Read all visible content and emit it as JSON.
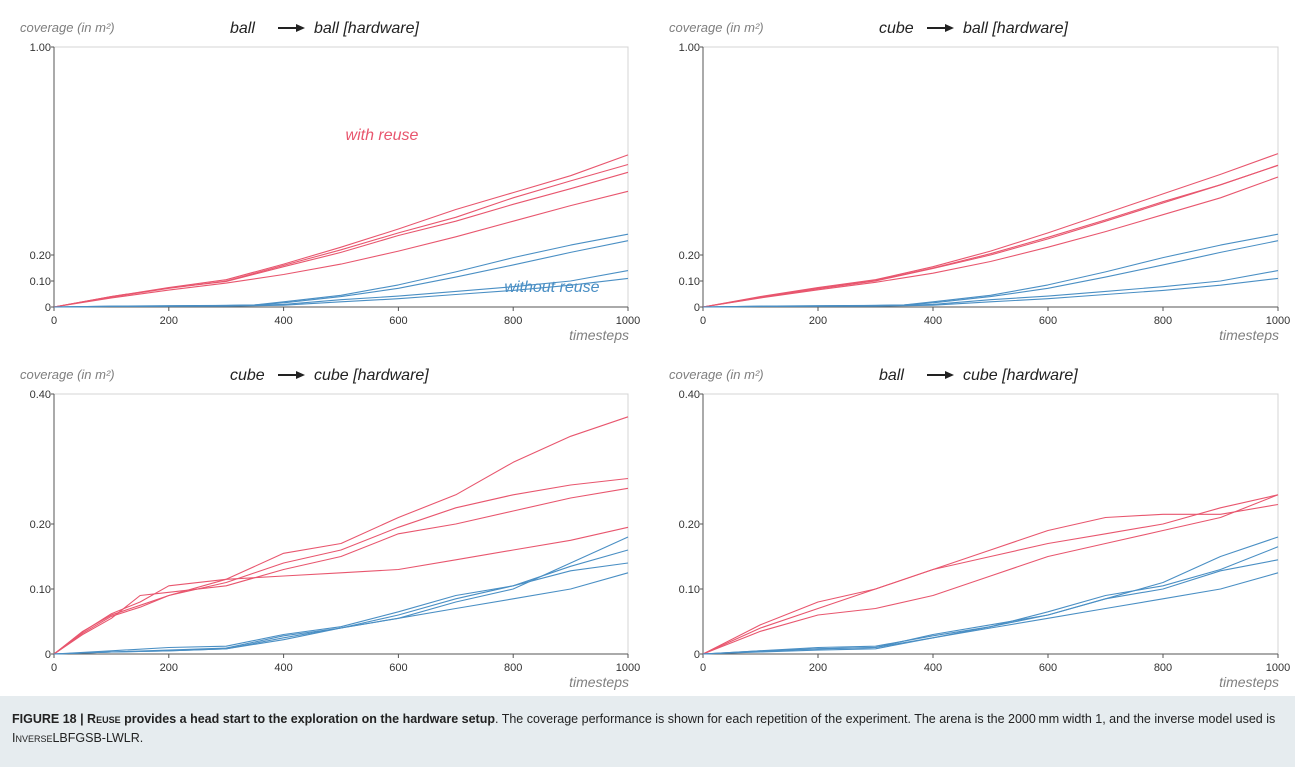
{
  "colors": {
    "with_reuse": "#e8566e",
    "without_reuse": "#4a8fc4"
  },
  "caption": {
    "label": "FIGURE 18 | ",
    "bold_sc": "Reuse",
    "bold_rest": " provides a head start to the exploration on the hardware setup",
    "text_1": ". The coverage performance is shown for each repetition of the experiment. The arena is the 2000 mm width 1, and the inverse model used is ",
    "model_sc": "Inverse",
    "model_rest": "LBFGSB-LWLR",
    "end": "."
  },
  "chart_data": [
    {
      "type": "line",
      "title_left": "ball",
      "title_right": "ball [hardware]",
      "ylabel": "coverage (in m²)",
      "xlabel": "timesteps",
      "xlim": [
        0,
        1000
      ],
      "ylim": [
        0,
        1.0
      ],
      "x_ticks": [
        "0",
        "200",
        "400",
        "600",
        "800",
        "1000"
      ],
      "y_ticks": [
        {
          "v": 0,
          "label": "0"
        },
        {
          "v": 0.1,
          "label": "0.10"
        },
        {
          "v": 0.2,
          "label": "0.20"
        },
        {
          "v": 1.0,
          "label": "1.00"
        }
      ],
      "grid": false,
      "annotations": [
        {
          "text": "with reuse",
          "series": "with_reuse"
        },
        {
          "text": "without reuse",
          "series": "without_reuse"
        }
      ],
      "series": [
        {
          "group": "with_reuse",
          "x": [
            0,
            100,
            200,
            300,
            400,
            500,
            600,
            700,
            800,
            900,
            1000
          ],
          "y": [
            0,
            0.04,
            0.075,
            0.105,
            0.165,
            0.23,
            0.3,
            0.375,
            0.44,
            0.505,
            0.585
          ]
        },
        {
          "group": "with_reuse",
          "x": [
            0,
            100,
            200,
            300,
            400,
            500,
            600,
            700,
            800,
            900,
            1000
          ],
          "y": [
            0,
            0.038,
            0.072,
            0.1,
            0.16,
            0.22,
            0.285,
            0.345,
            0.42,
            0.485,
            0.548
          ]
        },
        {
          "group": "with_reuse",
          "x": [
            0,
            100,
            200,
            300,
            400,
            500,
            600,
            700,
            800,
            900,
            1000
          ],
          "y": [
            0,
            0.04,
            0.073,
            0.098,
            0.155,
            0.21,
            0.275,
            0.33,
            0.395,
            0.455,
            0.518
          ]
        },
        {
          "group": "with_reuse",
          "x": [
            0,
            100,
            200,
            300,
            400,
            500,
            600,
            700,
            800,
            900,
            1000
          ],
          "y": [
            0,
            0.035,
            0.065,
            0.092,
            0.125,
            0.165,
            0.215,
            0.27,
            0.33,
            0.39,
            0.445
          ]
        },
        {
          "group": "without_reuse",
          "x": [
            0,
            100,
            200,
            300,
            350,
            400,
            500,
            600,
            700,
            800,
            900,
            1000
          ],
          "y": [
            0,
            0.003,
            0.005,
            0.006,
            0.008,
            0.02,
            0.045,
            0.085,
            0.135,
            0.19,
            0.238,
            0.28
          ]
        },
        {
          "group": "without_reuse",
          "x": [
            0,
            100,
            200,
            300,
            350,
            400,
            500,
            600,
            700,
            800,
            900,
            1000
          ],
          "y": [
            0,
            0.003,
            0.004,
            0.006,
            0.008,
            0.016,
            0.04,
            0.072,
            0.115,
            0.162,
            0.21,
            0.255
          ]
        },
        {
          "group": "without_reuse",
          "x": [
            0,
            100,
            200,
            300,
            400,
            500,
            600,
            700,
            800,
            900,
            1000
          ],
          "y": [
            0,
            0.002,
            0.003,
            0.004,
            0.01,
            0.028,
            0.042,
            0.06,
            0.078,
            0.1,
            0.14
          ]
        },
        {
          "group": "without_reuse",
          "x": [
            0,
            100,
            200,
            300,
            400,
            500,
            600,
            700,
            800,
            900,
            1000
          ],
          "y": [
            0,
            0.002,
            0.003,
            0.003,
            0.007,
            0.02,
            0.032,
            0.048,
            0.064,
            0.084,
            0.11
          ]
        }
      ]
    },
    {
      "type": "line",
      "title_left": "cube",
      "title_right": "ball [hardware]",
      "ylabel": "coverage (in m²)",
      "xlabel": "timesteps",
      "xlim": [
        0,
        1000
      ],
      "ylim": [
        0,
        1.0
      ],
      "x_ticks": [
        "0",
        "200",
        "400",
        "600",
        "800",
        "1000"
      ],
      "y_ticks": [
        {
          "v": 0,
          "label": "0"
        },
        {
          "v": 0.1,
          "label": "0.10"
        },
        {
          "v": 0.2,
          "label": "0.20"
        },
        {
          "v": 1.0,
          "label": "1.00"
        }
      ],
      "grid": false,
      "annotations": [],
      "series": [
        {
          "group": "with_reuse",
          "x": [
            0,
            100,
            200,
            300,
            400,
            500,
            600,
            700,
            800,
            900,
            1000
          ],
          "y": [
            0,
            0.04,
            0.075,
            0.105,
            0.155,
            0.215,
            0.285,
            0.36,
            0.435,
            0.51,
            0.59
          ]
        },
        {
          "group": "with_reuse",
          "x": [
            0,
            100,
            200,
            300,
            400,
            500,
            600,
            700,
            800,
            900,
            1000
          ],
          "y": [
            0,
            0.038,
            0.072,
            0.102,
            0.15,
            0.205,
            0.268,
            0.335,
            0.405,
            0.47,
            0.545
          ]
        },
        {
          "group": "with_reuse",
          "x": [
            0,
            100,
            200,
            300,
            400,
            500,
            600,
            700,
            800,
            900,
            1000
          ],
          "y": [
            0,
            0.036,
            0.07,
            0.1,
            0.148,
            0.2,
            0.262,
            0.33,
            0.4,
            0.47,
            0.545
          ]
        },
        {
          "group": "with_reuse",
          "x": [
            0,
            100,
            200,
            300,
            400,
            500,
            600,
            700,
            800,
            900,
            1000
          ],
          "y": [
            0,
            0.035,
            0.066,
            0.095,
            0.13,
            0.175,
            0.23,
            0.29,
            0.355,
            0.42,
            0.5
          ]
        },
        {
          "group": "without_reuse",
          "x": [
            0,
            100,
            200,
            300,
            350,
            400,
            500,
            600,
            700,
            800,
            900,
            1000
          ],
          "y": [
            0,
            0.003,
            0.005,
            0.006,
            0.008,
            0.02,
            0.045,
            0.085,
            0.135,
            0.19,
            0.238,
            0.28
          ]
        },
        {
          "group": "without_reuse",
          "x": [
            0,
            100,
            200,
            300,
            350,
            400,
            500,
            600,
            700,
            800,
            900,
            1000
          ],
          "y": [
            0,
            0.003,
            0.004,
            0.006,
            0.008,
            0.016,
            0.04,
            0.072,
            0.115,
            0.162,
            0.21,
            0.255
          ]
        },
        {
          "group": "without_reuse",
          "x": [
            0,
            100,
            200,
            300,
            400,
            500,
            600,
            700,
            800,
            900,
            1000
          ],
          "y": [
            0,
            0.002,
            0.003,
            0.004,
            0.01,
            0.028,
            0.042,
            0.06,
            0.078,
            0.1,
            0.14
          ]
        },
        {
          "group": "without_reuse",
          "x": [
            0,
            100,
            200,
            300,
            400,
            500,
            600,
            700,
            800,
            900,
            1000
          ],
          "y": [
            0,
            0.002,
            0.003,
            0.003,
            0.007,
            0.02,
            0.032,
            0.048,
            0.064,
            0.084,
            0.11
          ]
        }
      ]
    },
    {
      "type": "line",
      "title_left": "cube",
      "title_right": "cube [hardware]",
      "ylabel": "coverage (in m²)",
      "xlabel": "timesteps",
      "xlim": [
        0,
        1000
      ],
      "ylim": [
        0,
        0.4
      ],
      "x_ticks": [
        "0",
        "200",
        "400",
        "600",
        "800",
        "1000"
      ],
      "y_ticks": [
        {
          "v": 0,
          "label": "0"
        },
        {
          "v": 0.1,
          "label": "0.10"
        },
        {
          "v": 0.2,
          "label": "0.20"
        },
        {
          "v": 0.4,
          "label": "0.40"
        }
      ],
      "grid": false,
      "annotations": [],
      "series": [
        {
          "group": "with_reuse",
          "x": [
            0,
            50,
            100,
            150,
            200,
            300,
            400,
            500,
            600,
            700,
            800,
            900,
            1000
          ],
          "y": [
            0,
            0.035,
            0.06,
            0.075,
            0.09,
            0.115,
            0.155,
            0.17,
            0.21,
            0.245,
            0.295,
            0.335,
            0.365
          ]
        },
        {
          "group": "with_reuse",
          "x": [
            0,
            50,
            100,
            150,
            200,
            300,
            400,
            500,
            600,
            700,
            800,
            900,
            1000
          ],
          "y": [
            0,
            0.032,
            0.058,
            0.072,
            0.09,
            0.11,
            0.14,
            0.16,
            0.195,
            0.225,
            0.245,
            0.26,
            0.27
          ]
        },
        {
          "group": "with_reuse",
          "x": [
            0,
            50,
            100,
            150,
            200,
            300,
            400,
            500,
            600,
            700,
            800,
            900,
            1000
          ],
          "y": [
            0,
            0.03,
            0.055,
            0.09,
            0.095,
            0.105,
            0.13,
            0.15,
            0.185,
            0.2,
            0.22,
            0.24,
            0.255
          ]
        },
        {
          "group": "with_reuse",
          "x": [
            0,
            50,
            100,
            150,
            200,
            300,
            400,
            500,
            600,
            700,
            800,
            900,
            1000
          ],
          "y": [
            0,
            0.034,
            0.062,
            0.08,
            0.105,
            0.115,
            0.12,
            0.125,
            0.13,
            0.145,
            0.16,
            0.175,
            0.195
          ]
        },
        {
          "group": "without_reuse",
          "x": [
            0,
            100,
            200,
            300,
            400,
            500,
            600,
            700,
            800,
            900,
            1000
          ],
          "y": [
            0,
            0.003,
            0.005,
            0.008,
            0.022,
            0.04,
            0.055,
            0.08,
            0.1,
            0.14,
            0.18
          ]
        },
        {
          "group": "without_reuse",
          "x": [
            0,
            100,
            200,
            300,
            400,
            500,
            600,
            700,
            800,
            900,
            1000
          ],
          "y": [
            0,
            0.003,
            0.005,
            0.008,
            0.025,
            0.04,
            0.06,
            0.085,
            0.105,
            0.135,
            0.16
          ]
        },
        {
          "group": "without_reuse",
          "x": [
            0,
            100,
            200,
            300,
            400,
            500,
            600,
            700,
            800,
            900,
            1000
          ],
          "y": [
            0,
            0.005,
            0.01,
            0.012,
            0.03,
            0.042,
            0.065,
            0.09,
            0.105,
            0.128,
            0.14
          ]
        },
        {
          "group": "without_reuse",
          "x": [
            0,
            100,
            200,
            300,
            400,
            500,
            600,
            700,
            800,
            900,
            1000
          ],
          "y": [
            0,
            0.003,
            0.006,
            0.009,
            0.028,
            0.04,
            0.055,
            0.07,
            0.085,
            0.1,
            0.125
          ]
        }
      ]
    },
    {
      "type": "line",
      "title_left": "ball",
      "title_right": "cube [hardware]",
      "ylabel": "coverage (in m²)",
      "xlabel": "timesteps",
      "xlim": [
        0,
        1000
      ],
      "ylim": [
        0,
        0.4
      ],
      "x_ticks": [
        "0",
        "200",
        "400",
        "600",
        "800",
        "1000"
      ],
      "y_ticks": [
        {
          "v": 0,
          "label": "0"
        },
        {
          "v": 0.1,
          "label": "0.10"
        },
        {
          "v": 0.2,
          "label": "0.20"
        },
        {
          "v": 0.4,
          "label": "0.40"
        }
      ],
      "grid": false,
      "annotations": [],
      "series": [
        {
          "group": "with_reuse",
          "x": [
            0,
            100,
            200,
            300,
            400,
            500,
            600,
            700,
            800,
            900,
            1000
          ],
          "y": [
            0,
            0.045,
            0.08,
            0.1,
            0.13,
            0.16,
            0.19,
            0.21,
            0.215,
            0.215,
            0.23
          ]
        },
        {
          "group": "with_reuse",
          "x": [
            0,
            100,
            200,
            300,
            400,
            500,
            600,
            700,
            800,
            900,
            1000
          ],
          "y": [
            0,
            0.04,
            0.07,
            0.1,
            0.13,
            0.15,
            0.17,
            0.185,
            0.2,
            0.225,
            0.245
          ]
        },
        {
          "group": "with_reuse",
          "x": [
            0,
            100,
            200,
            300,
            400,
            500,
            600,
            700,
            800,
            900,
            1000
          ],
          "y": [
            0,
            0.035,
            0.06,
            0.07,
            0.09,
            0.12,
            0.15,
            0.17,
            0.19,
            0.21,
            0.245
          ]
        },
        {
          "group": "without_reuse",
          "x": [
            0,
            100,
            200,
            300,
            400,
            500,
            600,
            700,
            800,
            900,
            1000
          ],
          "y": [
            0,
            0.005,
            0.008,
            0.01,
            0.025,
            0.042,
            0.06,
            0.085,
            0.11,
            0.15,
            0.18
          ]
        },
        {
          "group": "without_reuse",
          "x": [
            0,
            100,
            200,
            300,
            400,
            500,
            600,
            700,
            800,
            900,
            1000
          ],
          "y": [
            0,
            0.005,
            0.01,
            0.012,
            0.028,
            0.042,
            0.065,
            0.09,
            0.105,
            0.13,
            0.165
          ]
        },
        {
          "group": "without_reuse",
          "x": [
            0,
            100,
            200,
            300,
            400,
            500,
            600,
            700,
            800,
            900,
            1000
          ],
          "y": [
            0,
            0.004,
            0.008,
            0.01,
            0.03,
            0.045,
            0.06,
            0.085,
            0.1,
            0.128,
            0.145
          ]
        },
        {
          "group": "without_reuse",
          "x": [
            0,
            100,
            200,
            300,
            400,
            500,
            600,
            700,
            800,
            900,
            1000
          ],
          "y": [
            0,
            0.003,
            0.006,
            0.008,
            0.025,
            0.04,
            0.055,
            0.07,
            0.085,
            0.1,
            0.125
          ]
        }
      ]
    }
  ]
}
